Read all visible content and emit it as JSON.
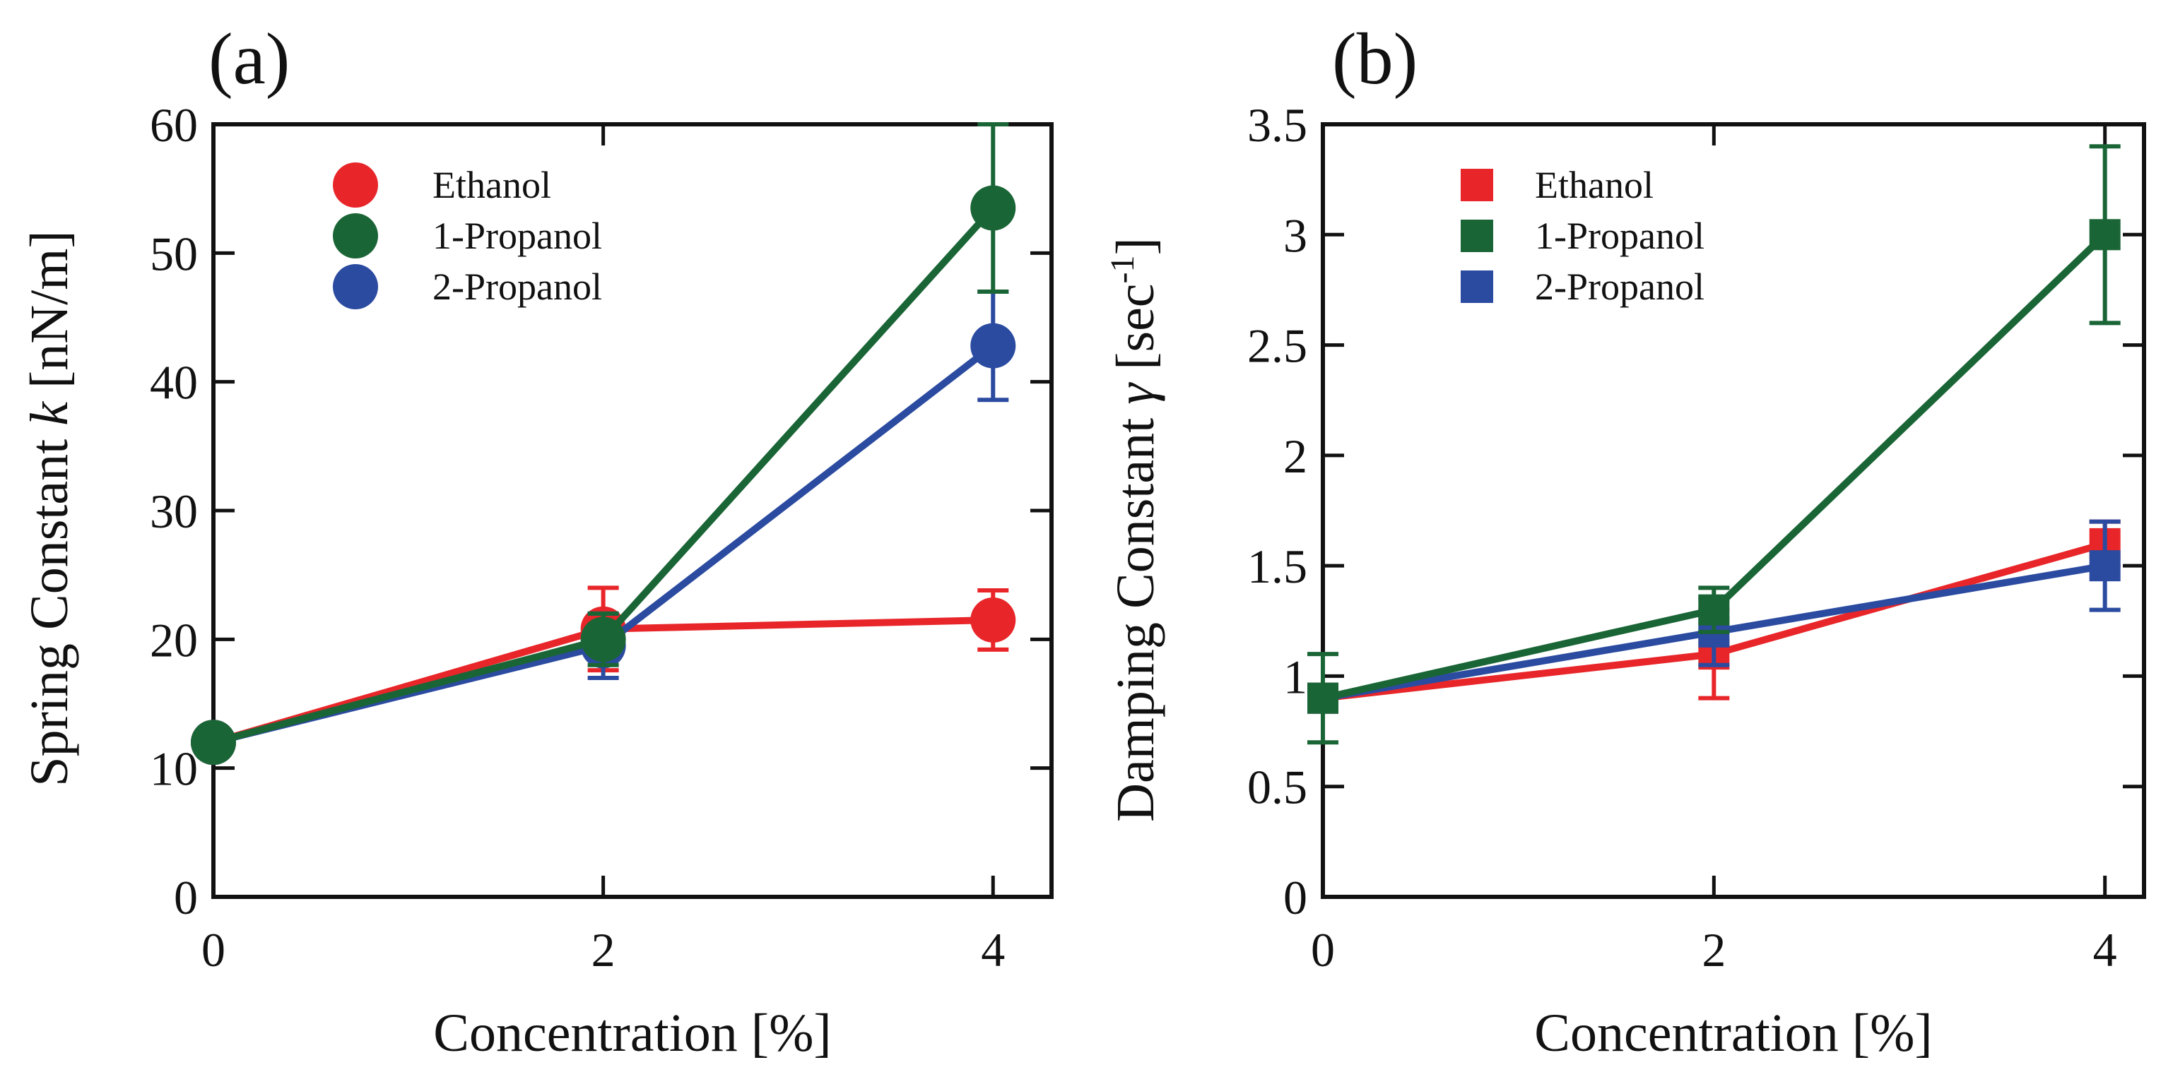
{
  "chart_data": [
    {
      "id": "a",
      "type": "line",
      "panel_label": "(a)",
      "title": "",
      "xlabel": "Concentration [%]",
      "ylabel": {
        "prefix": "Spring Constant ",
        "var": "k",
        "suffix": " [nN/m]"
      },
      "xlim": [
        0,
        4.3
      ],
      "ylim": [
        0,
        60
      ],
      "xticks": [
        0,
        2,
        4
      ],
      "xtick_labels": [
        "0",
        "2",
        "4"
      ],
      "yticks": [
        0,
        10,
        20,
        30,
        40,
        50,
        60
      ],
      "ytick_labels": [
        "0",
        "10",
        "20",
        "30",
        "40",
        "50",
        "60"
      ],
      "grid": false,
      "marker": "circle",
      "legend_position": "top-left",
      "x": [
        0,
        2,
        4
      ],
      "series": [
        {
          "name": "Ethanol",
          "color": "#e8262a",
          "values": [
            12,
            20.8,
            21.5
          ],
          "errors": [
            0,
            3.2,
            2.3
          ]
        },
        {
          "name": "2-Propanol",
          "color": "#2b4ba0",
          "values": [
            12,
            19.5,
            42.8
          ],
          "errors": [
            0,
            2.5,
            4.2
          ]
        },
        {
          "name": "1-Propanol",
          "color": "#1a6536",
          "values": [
            12,
            20.0,
            53.5
          ],
          "errors": [
            0,
            2.0,
            6.5
          ]
        }
      ],
      "legend_order": [
        "Ethanol",
        "1-Propanol",
        "2-Propanol"
      ]
    },
    {
      "id": "b",
      "type": "line",
      "panel_label": "(b)",
      "title": "",
      "xlabel": "Concentration [%]",
      "ylabel": {
        "prefix": "Damping Constant ",
        "var": "γ",
        "suffix": " [sec",
        "sup": "-1",
        "close": "]"
      },
      "xlim": [
        0,
        4.2
      ],
      "ylim": [
        0,
        3.5
      ],
      "xticks": [
        0,
        2,
        4
      ],
      "xtick_labels": [
        "0",
        "2",
        "4"
      ],
      "yticks": [
        0,
        0.5,
        1,
        1.5,
        2,
        2.5,
        3,
        3.5
      ],
      "ytick_labels": [
        "0",
        "0.5",
        "1",
        "1.5",
        "2",
        "2.5",
        "3",
        "3.5"
      ],
      "grid": false,
      "marker": "square",
      "legend_position": "top-left",
      "x": [
        0,
        2,
        4
      ],
      "series": [
        {
          "name": "Ethanol",
          "color": "#e8262a",
          "values": [
            0.9,
            1.1,
            1.6
          ],
          "errors": [
            0,
            0.2,
            0.1
          ]
        },
        {
          "name": "2-Propanol",
          "color": "#2b4ba0",
          "values": [
            0.9,
            1.2,
            1.5
          ],
          "errors": [
            0,
            0.15,
            0.2
          ]
        },
        {
          "name": "1-Propanol",
          "color": "#1a6536",
          "values": [
            0.9,
            1.3,
            3.0
          ],
          "errors": [
            0.2,
            0.1,
            0.4
          ]
        }
      ],
      "legend_order": [
        "Ethanol",
        "1-Propanol",
        "2-Propanol"
      ]
    }
  ]
}
